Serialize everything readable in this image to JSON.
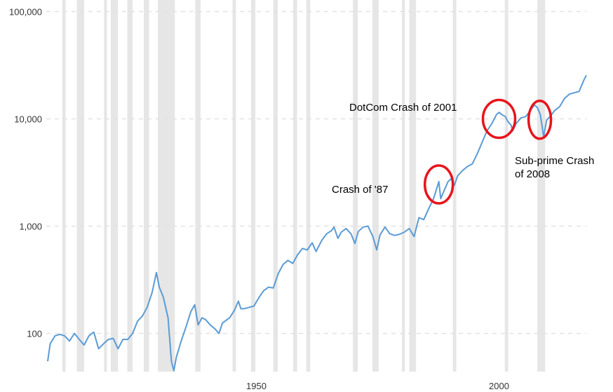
{
  "chart_data": {
    "type": "line",
    "title": "",
    "xlabel": "",
    "ylabel": "",
    "y_scale": "log",
    "ylim": [
      50,
      100000
    ],
    "xlim": [
      1907,
      2018
    ],
    "y_ticks": [
      100,
      1000,
      10000,
      100000
    ],
    "y_tick_labels": [
      "100",
      "1,000",
      "10,000",
      "100,000"
    ],
    "x_ticks": [
      1950,
      2000
    ],
    "x_tick_labels": [
      "1950",
      "2000"
    ],
    "grid": "horizontal dashed",
    "legend": "none",
    "line_color": "#5b9bd5",
    "recession_color": "#e6e6e6",
    "series": [
      {
        "values": [
          [
            1907.0,
            55
          ],
          [
            1907.5,
            80
          ],
          [
            1908.5,
            95
          ],
          [
            1909.5,
            98
          ],
          [
            1910.5,
            95
          ],
          [
            1911.5,
            85
          ],
          [
            1912.5,
            100
          ],
          [
            1913.5,
            88
          ],
          [
            1914.5,
            78
          ],
          [
            1915.5,
            95
          ],
          [
            1916.5,
            103
          ],
          [
            1917.5,
            72
          ],
          [
            1918.5,
            80
          ],
          [
            1919.5,
            88
          ],
          [
            1920.5,
            90
          ],
          [
            1921.5,
            72
          ],
          [
            1922.5,
            88
          ],
          [
            1923.5,
            88
          ],
          [
            1924.5,
            100
          ],
          [
            1925.5,
            130
          ],
          [
            1926.5,
            145
          ],
          [
            1927.5,
            175
          ],
          [
            1928.5,
            240
          ],
          [
            1929.4,
            370
          ],
          [
            1930.0,
            270
          ],
          [
            1930.8,
            220
          ],
          [
            1931.8,
            140
          ],
          [
            1932.5,
            55
          ],
          [
            1933.0,
            45
          ],
          [
            1933.5,
            60
          ],
          [
            1934.5,
            85
          ],
          [
            1935.5,
            115
          ],
          [
            1936.5,
            160
          ],
          [
            1937.3,
            185
          ],
          [
            1938.0,
            120
          ],
          [
            1938.8,
            140
          ],
          [
            1939.5,
            135
          ],
          [
            1940.5,
            120
          ],
          [
            1941.5,
            110
          ],
          [
            1942.3,
            100
          ],
          [
            1943.0,
            125
          ],
          [
            1944.5,
            140
          ],
          [
            1945.5,
            165
          ],
          [
            1946.3,
            200
          ],
          [
            1946.8,
            170
          ],
          [
            1947.5,
            170
          ],
          [
            1948.5,
            175
          ],
          [
            1949.5,
            180
          ],
          [
            1950.5,
            215
          ],
          [
            1951.5,
            250
          ],
          [
            1952.5,
            270
          ],
          [
            1953.5,
            265
          ],
          [
            1954.5,
            360
          ],
          [
            1955.5,
            440
          ],
          [
            1956.5,
            480
          ],
          [
            1957.5,
            450
          ],
          [
            1958.5,
            540
          ],
          [
            1959.5,
            620
          ],
          [
            1960.5,
            600
          ],
          [
            1961.5,
            700
          ],
          [
            1962.3,
            580
          ],
          [
            1963.5,
            740
          ],
          [
            1964.5,
            850
          ],
          [
            1965.5,
            910
          ],
          [
            1966.0,
            980
          ],
          [
            1966.8,
            770
          ],
          [
            1967.5,
            880
          ],
          [
            1968.5,
            950
          ],
          [
            1969.5,
            850
          ],
          [
            1970.3,
            690
          ],
          [
            1971.0,
            890
          ],
          [
            1972.0,
            980
          ],
          [
            1973.0,
            1000
          ],
          [
            1974.0,
            800
          ],
          [
            1974.8,
            600
          ],
          [
            1975.5,
            830
          ],
          [
            1976.5,
            980
          ],
          [
            1977.5,
            850
          ],
          [
            1978.5,
            820
          ],
          [
            1979.5,
            840
          ],
          [
            1980.5,
            880
          ],
          [
            1981.5,
            950
          ],
          [
            1982.5,
            800
          ],
          [
            1983.5,
            1200
          ],
          [
            1984.5,
            1150
          ],
          [
            1985.5,
            1450
          ],
          [
            1986.5,
            1800
          ],
          [
            1987.6,
            2600
          ],
          [
            1988.0,
            1800
          ],
          [
            1988.5,
            2050
          ],
          [
            1989.5,
            2600
          ],
          [
            1990.3,
            2800
          ],
          [
            1990.8,
            2400
          ],
          [
            1991.5,
            2950
          ],
          [
            1992.5,
            3300
          ],
          [
            1993.5,
            3600
          ],
          [
            1994.5,
            3800
          ],
          [
            1995.5,
            4700
          ],
          [
            1996.5,
            6000
          ],
          [
            1997.5,
            7700
          ],
          [
            1998.5,
            9000
          ],
          [
            1999.5,
            11000
          ],
          [
            2000.0,
            11500
          ],
          [
            2000.8,
            10800
          ],
          [
            2001.3,
            10500
          ],
          [
            2001.8,
            9500
          ],
          [
            2002.5,
            8700
          ],
          [
            2002.8,
            7700
          ],
          [
            2003.5,
            9000
          ],
          [
            2004.5,
            10200
          ],
          [
            2005.5,
            10500
          ],
          [
            2006.5,
            12000
          ],
          [
            2007.3,
            13500
          ],
          [
            2007.9,
            12800
          ],
          [
            2008.5,
            11000
          ],
          [
            2008.9,
            8500
          ],
          [
            2009.2,
            6800
          ],
          [
            2009.8,
            9700
          ],
          [
            2010.5,
            10500
          ],
          [
            2011.5,
            12000
          ],
          [
            2012.5,
            13000
          ],
          [
            2013.5,
            15500
          ],
          [
            2014.5,
            17000
          ],
          [
            2015.5,
            17500
          ],
          [
            2016.5,
            18000
          ],
          [
            2017.5,
            23000
          ],
          [
            2018.0,
            25500
          ]
        ]
      }
    ],
    "recession_bands": [
      [
        1910.0,
        1910.7
      ],
      [
        1913.0,
        1914.5
      ],
      [
        1918.6,
        1919.2
      ],
      [
        1920.0,
        1921.5
      ],
      [
        1923.4,
        1924.5
      ],
      [
        1926.8,
        1927.9
      ],
      [
        1929.7,
        1933.2
      ],
      [
        1937.4,
        1938.5
      ],
      [
        1945.1,
        1945.8
      ],
      [
        1948.9,
        1949.8
      ],
      [
        1953.5,
        1954.4
      ],
      [
        1957.6,
        1958.4
      ],
      [
        1960.3,
        1961.1
      ],
      [
        1969.9,
        1970.9
      ],
      [
        1973.9,
        1975.2
      ],
      [
        1980.0,
        1980.6
      ],
      [
        1981.5,
        1982.9
      ],
      [
        1990.5,
        1991.2
      ],
      [
        2001.2,
        2001.9
      ],
      [
        2007.9,
        2009.5
      ]
    ],
    "annotations": [
      {
        "text": "Crash of '87",
        "x": 1987.6,
        "y": 2450
      },
      {
        "text": "DotCom Crash of 2001",
        "x": 2000.0,
        "y": 10000
      },
      {
        "text": "Sub-prime Crash of 2008",
        "x": 2008.4,
        "y": 9800
      }
    ]
  },
  "annotation_labels": {
    "crash_87": "Crash of '87",
    "dotcom": "DotCom Crash of 2001",
    "subprime_line1": "Sub-prime Crash",
    "subprime_line2": "of 2008"
  }
}
